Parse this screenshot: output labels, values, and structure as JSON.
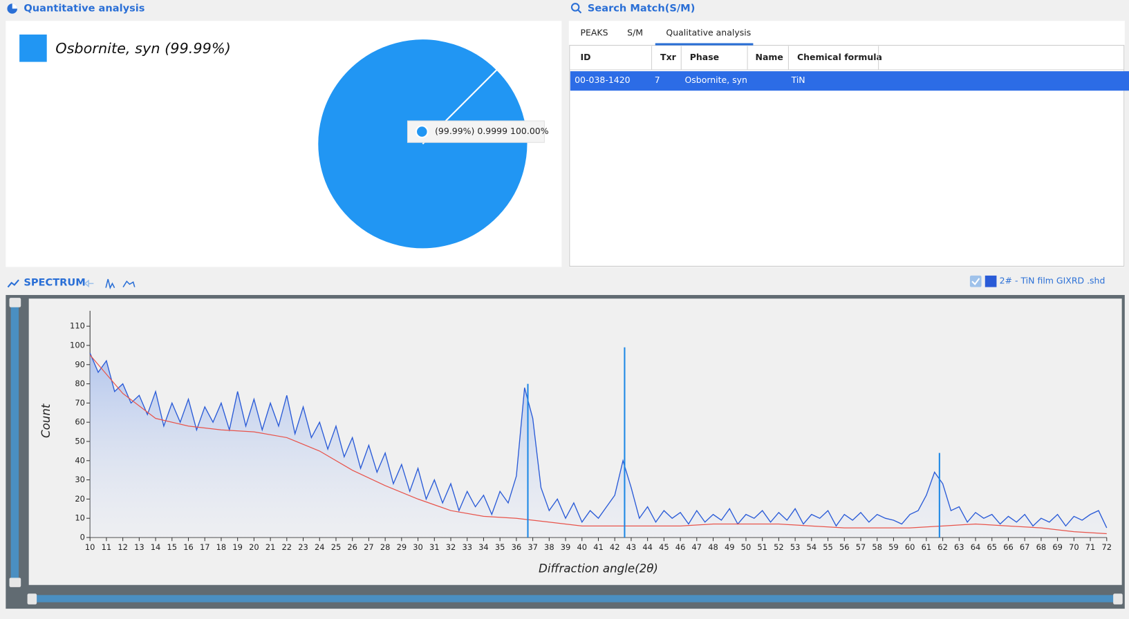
{
  "panels": {
    "quantitative": "Quantitative analysis",
    "search": "Search Match(S/M)",
    "spectrum": "SPECTRUM"
  },
  "tabs": {
    "items": [
      "PEAKS",
      "S/M",
      "Qualitative analysis"
    ],
    "active": 2
  },
  "table": {
    "columns": [
      "ID",
      "Txr",
      "Phase",
      "Name",
      "Chemical formula"
    ],
    "rows": [
      [
        "00-038-1420",
        7,
        "Osbornite, syn",
        null,
        "TiN"
      ]
    ],
    "selected": 0
  },
  "chart_data": [
    {
      "type": "pie",
      "categories": [
        "Osbornite, syn"
      ],
      "values": [
        99.99
      ],
      "legend_labels": [
        "Osbornite, syn (99.99%)"
      ],
      "tooltip": "(99.99%) 0.9999 100.00%",
      "color": "#2196f3"
    },
    {
      "type": "line",
      "x_label": "Diffraction angle(2θ)",
      "y_label": "Count",
      "xlim": [
        10,
        72
      ],
      "ylim": [
        0,
        118
      ],
      "xticks": [
        10,
        11,
        12,
        13,
        14,
        15,
        16,
        17,
        18,
        19,
        20,
        21,
        22,
        23,
        24,
        25,
        26,
        27,
        28,
        29,
        30,
        31,
        32,
        33,
        34,
        35,
        36,
        37,
        38,
        39,
        40,
        41,
        42,
        43,
        44,
        45,
        46,
        47,
        48,
        49,
        50,
        51,
        52,
        53,
        54,
        55,
        56,
        57,
        58,
        59,
        60,
        61,
        62,
        63,
        64,
        65,
        66,
        67,
        68,
        69,
        70,
        71,
        72
      ],
      "yticks": [
        0,
        10,
        20,
        30,
        40,
        50,
        60,
        70,
        80,
        90,
        100,
        110
      ],
      "series": [
        {
          "name": "2# - TiN film GIXRD .shd",
          "color": "#2a5bd7",
          "x": [
            10,
            10.5,
            11,
            11.5,
            12,
            12.5,
            13,
            13.5,
            14,
            14.5,
            15,
            15.5,
            16,
            16.5,
            17,
            17.5,
            18,
            18.5,
            19,
            19.5,
            20,
            20.5,
            21,
            21.5,
            22,
            22.5,
            23,
            23.5,
            24,
            24.5,
            25,
            25.5,
            26,
            26.5,
            27,
            27.5,
            28,
            28.5,
            29,
            29.5,
            30,
            30.5,
            31,
            31.5,
            32,
            32.5,
            33,
            33.5,
            34,
            34.5,
            35,
            35.5,
            36,
            36.5,
            37,
            37.5,
            38,
            38.5,
            39,
            39.5,
            40,
            40.5,
            41,
            41.5,
            42,
            42.5,
            43,
            43.5,
            44,
            44.5,
            45,
            45.5,
            46,
            46.5,
            47,
            47.5,
            48,
            48.5,
            49,
            49.5,
            50,
            50.5,
            51,
            51.5,
            52,
            52.5,
            53,
            53.5,
            54,
            54.5,
            55,
            55.5,
            56,
            56.5,
            57,
            57.5,
            58,
            58.5,
            59,
            59.5,
            60,
            60.5,
            61,
            61.5,
            62,
            62.5,
            63,
            63.5,
            64,
            64.5,
            65,
            65.5,
            66,
            66.5,
            67,
            67.5,
            68,
            68.5,
            69,
            69.5,
            70,
            70.5,
            71,
            71.5,
            72
          ],
          "values": [
            96,
            86,
            92,
            76,
            80,
            70,
            74,
            64,
            76,
            58,
            70,
            60,
            72,
            56,
            68,
            60,
            70,
            56,
            76,
            58,
            72,
            56,
            70,
            58,
            74,
            54,
            68,
            52,
            60,
            46,
            58,
            42,
            52,
            36,
            48,
            34,
            44,
            28,
            38,
            24,
            36,
            20,
            30,
            18,
            28,
            14,
            24,
            16,
            22,
            12,
            24,
            18,
            32,
            78,
            62,
            26,
            14,
            20,
            10,
            18,
            8,
            14,
            10,
            16,
            22,
            40,
            26,
            10,
            16,
            8,
            14,
            10,
            13,
            7,
            14,
            8,
            12,
            9,
            15,
            7,
            12,
            10,
            14,
            8,
            13,
            9,
            15,
            7,
            12,
            10,
            14,
            6,
            12,
            9,
            13,
            8,
            12,
            10,
            9,
            7,
            12,
            14,
            22,
            34,
            28,
            14,
            16,
            8,
            13,
            10,
            12,
            7,
            11,
            8,
            12,
            6,
            10,
            8,
            12,
            6,
            11,
            9,
            12,
            14,
            5
          ]
        },
        {
          "color": "#e8534a",
          "x": [
            10,
            12,
            14,
            16,
            18,
            20,
            22,
            24,
            26,
            28,
            30,
            32,
            34,
            36,
            38,
            40,
            42,
            44,
            46,
            48,
            50,
            52,
            54,
            56,
            58,
            60,
            62,
            64,
            66,
            68,
            70,
            72
          ],
          "values": [
            95,
            75,
            62,
            58,
            56,
            55,
            52,
            45,
            35,
            27,
            20,
            14,
            11,
            10,
            8,
            6,
            6,
            6,
            6,
            7,
            7,
            7,
            6,
            5,
            5,
            5,
            6,
            7,
            6,
            5,
            3,
            2
          ]
        }
      ],
      "peaks": {
        "x": [
          36.7,
          42.6,
          61.8
        ],
        "values": [
          80,
          99,
          44
        ],
        "color": "#1e88e5"
      }
    }
  ]
}
